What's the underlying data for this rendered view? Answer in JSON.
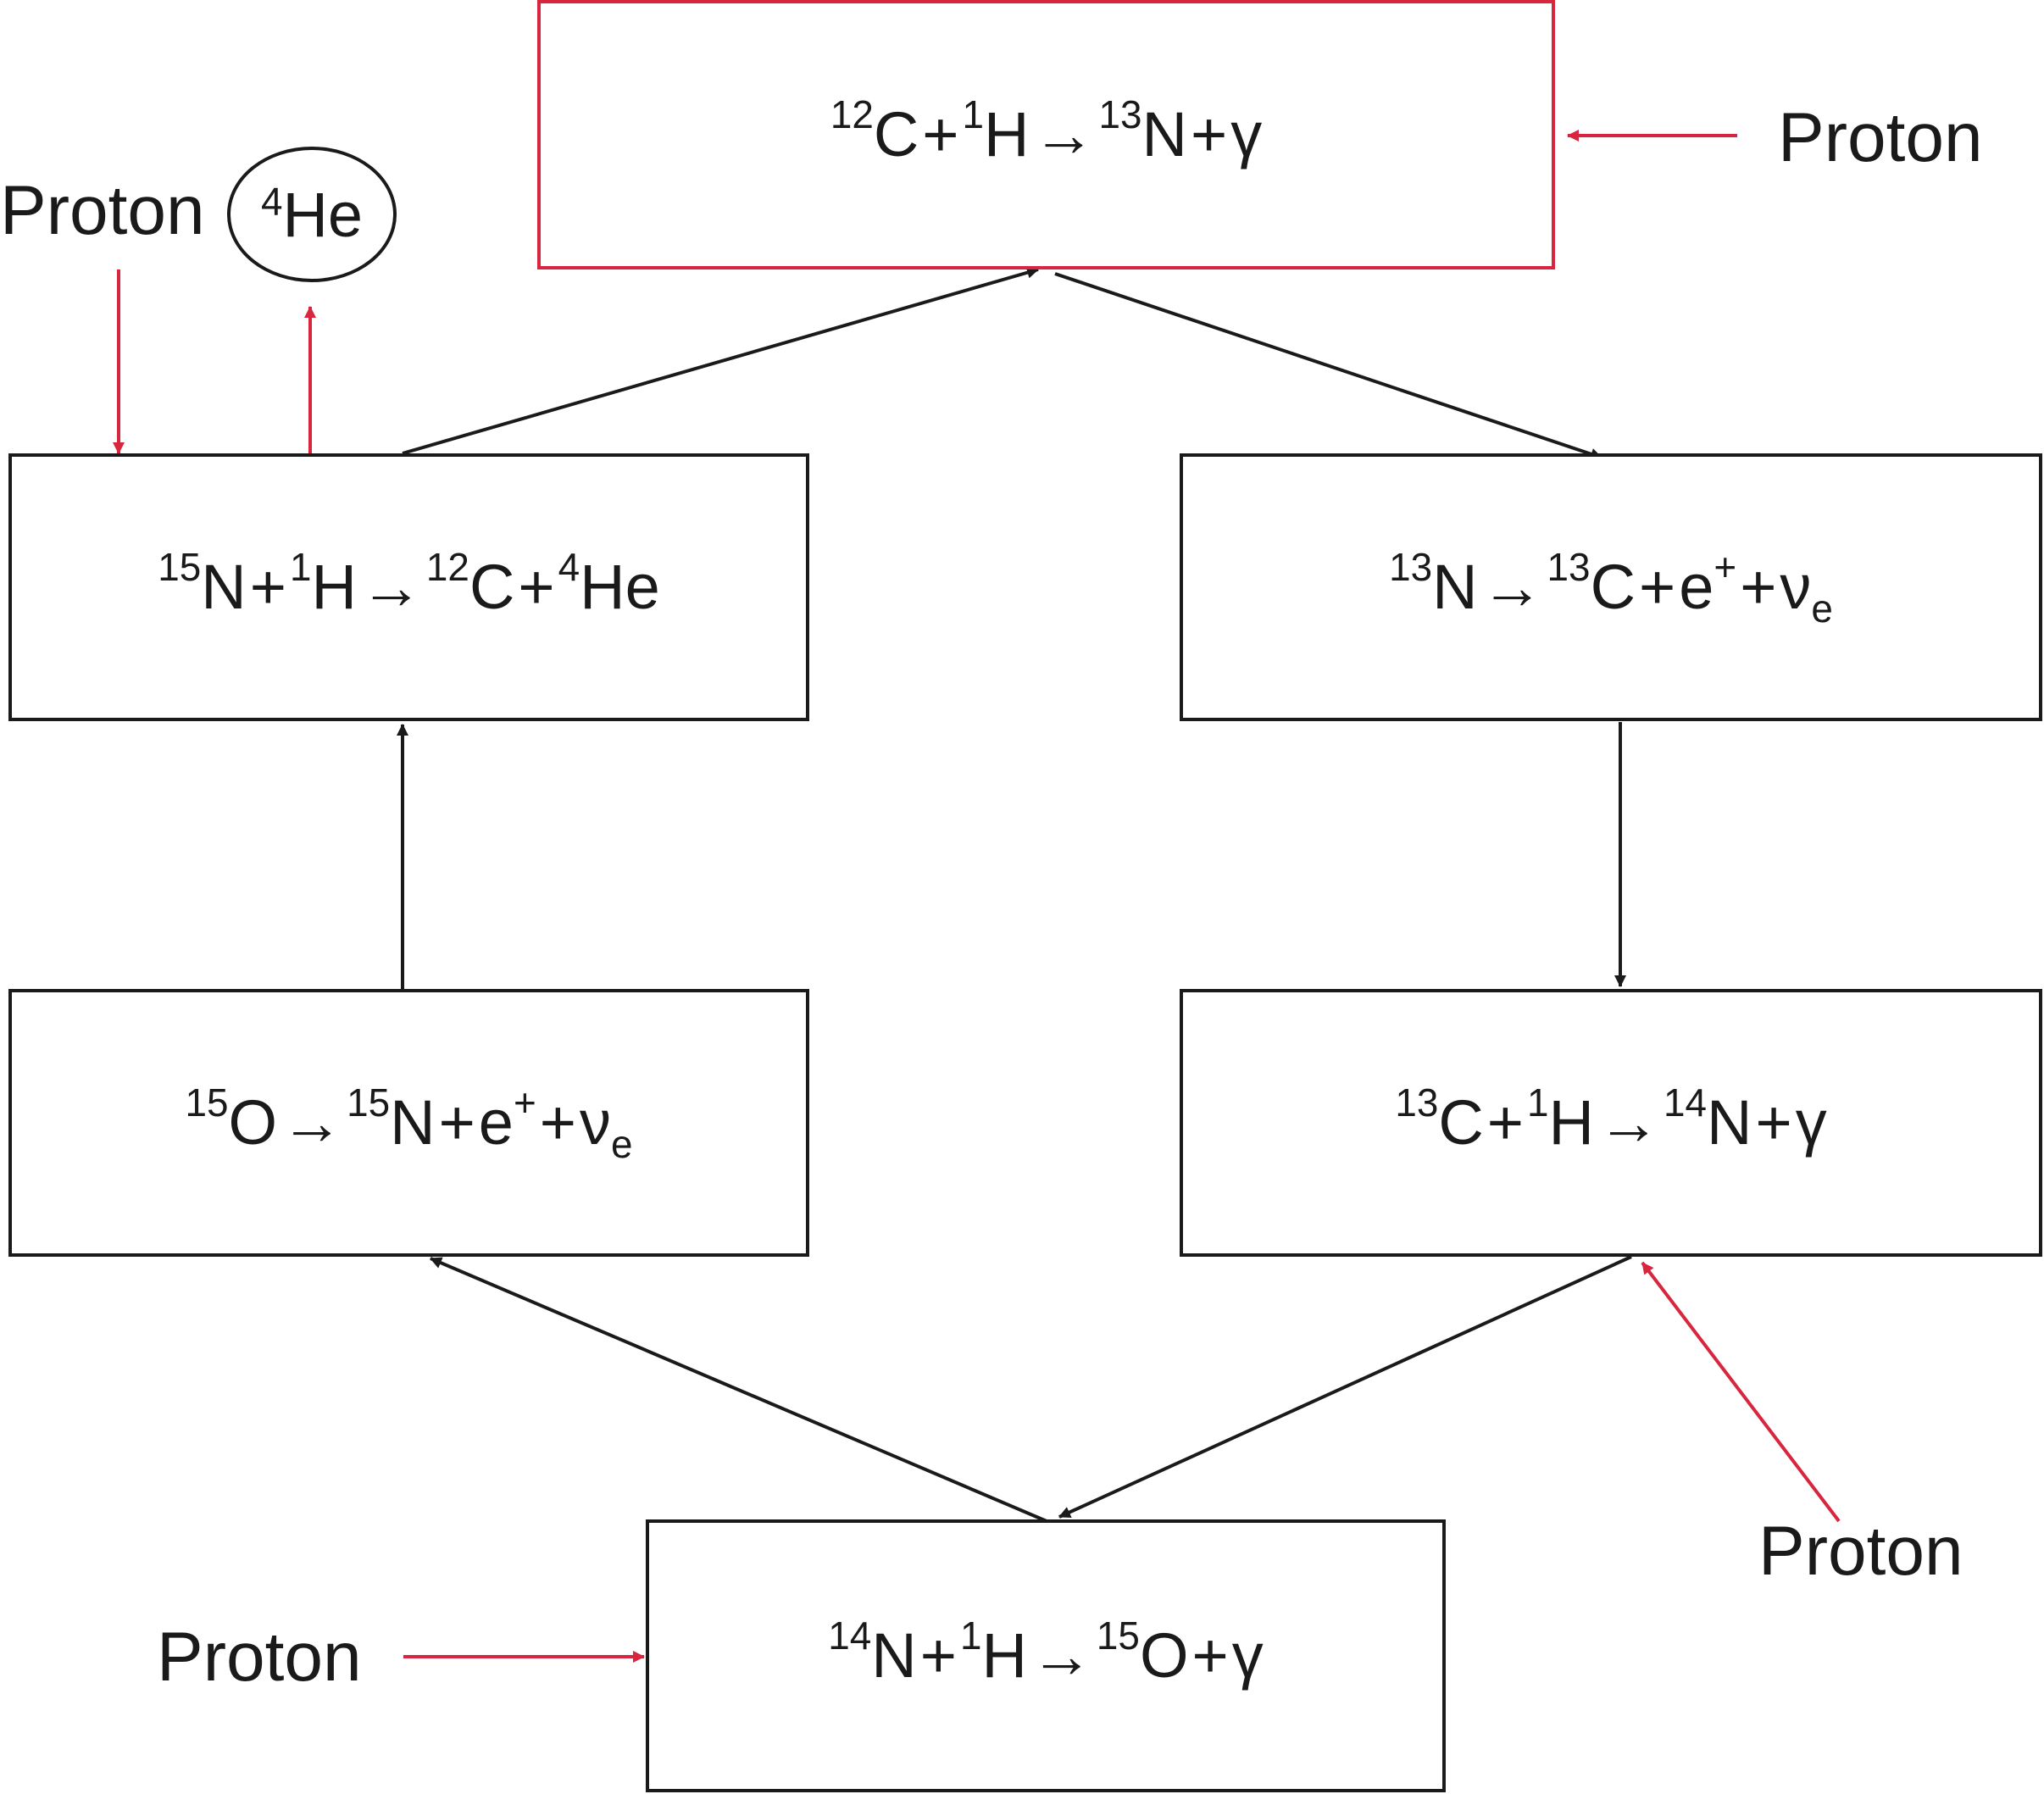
{
  "reactions": {
    "top": {
      "p1": "",
      "a": "12",
      "b": "C",
      "op1": "+",
      "c": "1",
      "d": "H",
      "arrow": "→",
      "e": "13",
      "f": "N",
      "op2": "+",
      "g": "γ"
    },
    "right_upper": {
      "a": "13",
      "b": "N",
      "arrow": "→",
      "c": "13",
      "d": "C",
      "op1": "+",
      "e": "e",
      "e_sup": "+",
      "op2": "+",
      "f": "ν",
      "f_sub": "e"
    },
    "right_lower": {
      "a": "13",
      "b": "C",
      "op1": "+",
      "c": "1",
      "d": "H",
      "arrow": "→",
      "e": "14",
      "f": "N",
      "op2": "+",
      "g": "γ"
    },
    "bottom": {
      "a": "14",
      "b": "N",
      "op1": "+",
      "c": "1",
      "d": "H",
      "arrow": "→",
      "e": "15",
      "f": "O",
      "op2": "+",
      "g": "γ"
    },
    "left_lower": {
      "a": "15",
      "b": "O",
      "arrow": "→",
      "c": "15",
      "d": "N",
      "op1": "+",
      "e": "e",
      "e_sup": "+",
      "op2": "+",
      "f": "ν",
      "f_sub": "e"
    },
    "left_upper": {
      "a": "15",
      "b": "N",
      "op1": "+",
      "c": "1",
      "d": "H",
      "arrow": "→",
      "e": "12",
      "f": "C",
      "op2": "+",
      "g": "4",
      "h": "He"
    }
  },
  "inputs": {
    "proton_top_right": "Proton",
    "proton_top_left": "Proton",
    "proton_bottom_right": "Proton",
    "proton_bottom_left": "Proton"
  },
  "outputs": {
    "helium_mass": "4",
    "helium_symbol": "He"
  },
  "colors": {
    "line": "#1a1a1a",
    "proton_arrow": "#d7263d",
    "highlight_box": "#d7263d"
  }
}
